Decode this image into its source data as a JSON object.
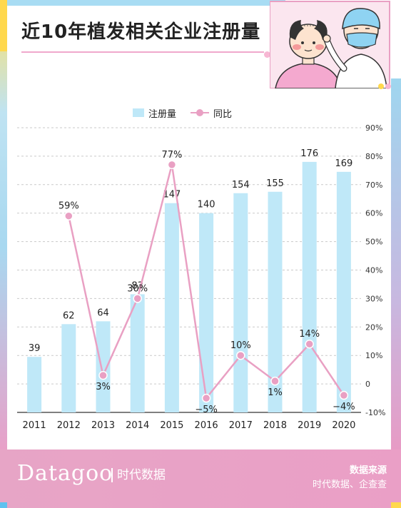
{
  "title": "近10年植发相关企业注册量",
  "legend": {
    "bar_label": "注册量",
    "line_label": "同比"
  },
  "footer": {
    "brand": "Datagoo",
    "brand_sub": "时代数据",
    "source_title": "数据来源",
    "source_text": "时代数据、企查查"
  },
  "colors": {
    "bar": "#bfe8f8",
    "line": "#e9a0c3",
    "point": "#e9a0c3"
  },
  "chart_data": {
    "type": "bar",
    "categories": [
      "2011",
      "2012",
      "2013",
      "2014",
      "2015",
      "2016",
      "2017",
      "2018",
      "2019",
      "2020"
    ],
    "series": [
      {
        "name": "注册量",
        "type": "bar",
        "values": [
          39,
          62,
          64,
          83,
          147,
          140,
          154,
          155,
          176,
          169
        ]
      },
      {
        "name": "同比",
        "type": "line",
        "axis": "right",
        "values": [
          null,
          59,
          3,
          30,
          77,
          -5,
          10,
          1,
          14,
          -4
        ],
        "labels": [
          "",
          "59%",
          "3%",
          "30%",
          "77%",
          "−5%",
          "10%",
          "1%",
          "14%",
          "−4%"
        ]
      }
    ],
    "bar_labels": [
      "39",
      "62",
      "64",
      "83",
      "147",
      "140",
      "154",
      "155",
      "176",
      "169"
    ],
    "y2_ticks": [
      "90%",
      "80%",
      "70%",
      "60%",
      "50%",
      "40%",
      "30%",
      "20%",
      "10%",
      "0",
      "-10%"
    ],
    "y2lim": [
      -10,
      90
    ],
    "grid": "dashed horizontal",
    "legend_position": "top-center"
  }
}
